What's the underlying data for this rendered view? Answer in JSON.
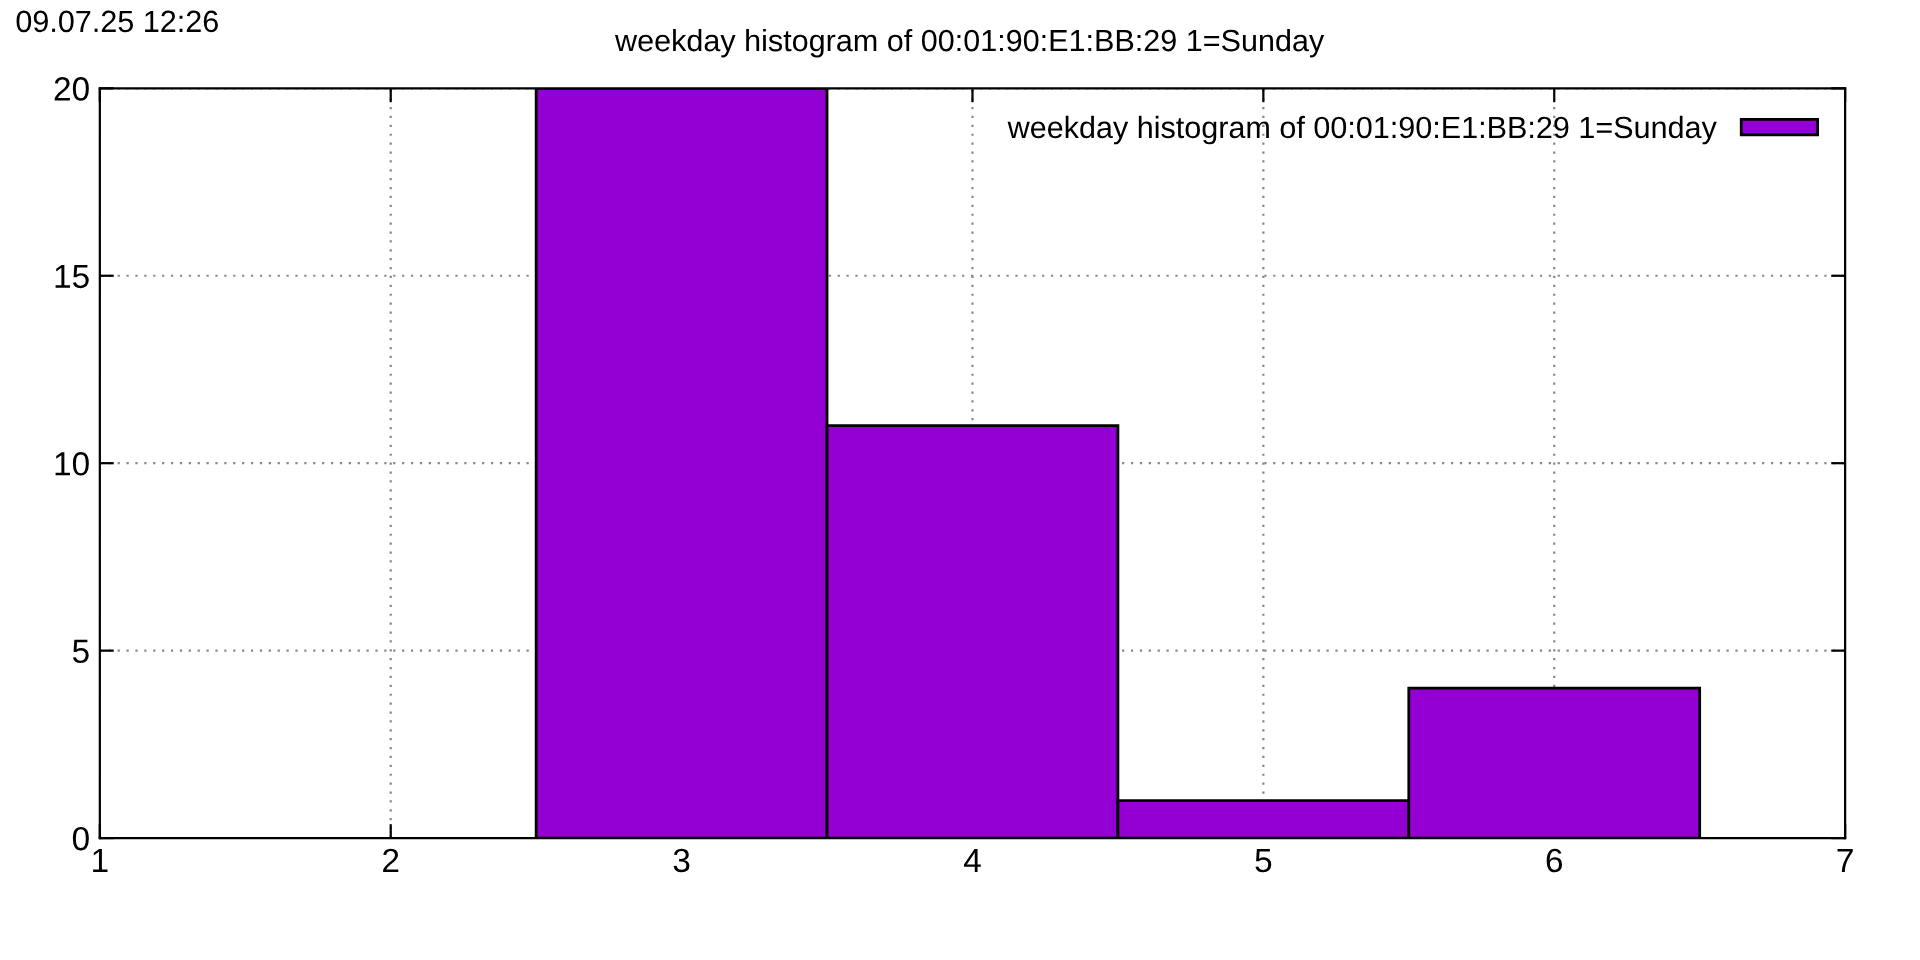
{
  "chart_data": {
    "type": "histogram",
    "title": "weekday histogram of 00:01:90:E1:BB:29 1=Sunday",
    "annotations": [
      "09.07.25 12:26"
    ],
    "bins": [
      2.5,
      3.5,
      4.5,
      5.5,
      6.5
    ],
    "series": [
      {
        "name": "weekday histogram of 00:01:90:E1:BB:29 1=Sunday",
        "color": "#9400d3",
        "values": [
          20,
          11,
          1,
          4
        ]
      }
    ],
    "xlim": [
      1,
      7
    ],
    "xticks": [
      1,
      2,
      3,
      4,
      5,
      6,
      7
    ],
    "ylim": [
      0,
      20
    ],
    "yticks": [
      0,
      5,
      10,
      15,
      20
    ],
    "grid": true,
    "legend": "top right"
  }
}
